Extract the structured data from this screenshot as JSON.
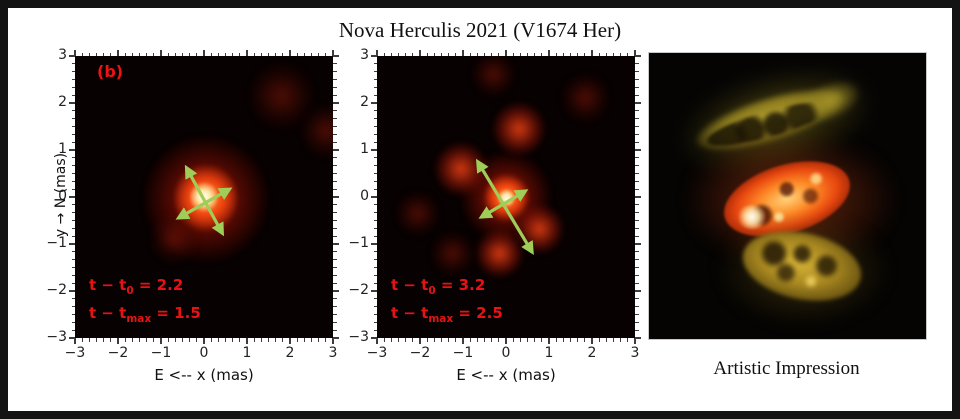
{
  "frame": {
    "title": "Nova Herculis 2021 (V1674 Her)"
  },
  "artistic": {
    "caption": "Artistic Impression"
  },
  "chart_data": {
    "type": "heatmap",
    "title": "Nova Herculis 2021 (V1674 Her)",
    "legend_position": "none",
    "grid": false,
    "colors": {
      "annotation_red": "#e71212",
      "arrow_green": "#9fce58",
      "tick": "#3c3c3c",
      "background": "#070101"
    },
    "panels": [
      {
        "id": "panel-b",
        "label": "(b)",
        "xlabel": "E <-- x (mas)",
        "ylabel": "y → N (mas)",
        "xlim": [
          -3,
          3
        ],
        "ylim": [
          -3,
          3
        ],
        "xticks": [
          -3,
          -2,
          -1,
          0,
          1,
          2,
          3
        ],
        "yticks": [
          -3,
          -2,
          -1,
          0,
          1,
          2,
          3
        ],
        "annotation": {
          "line1": {
            "pre": "t − t",
            "sub": "0",
            "post": " = 2.2"
          },
          "line2": {
            "pre": "t − t",
            "sub": "max",
            "post": " = 1.5"
          }
        },
        "blobs": [
          {
            "cx": 0.05,
            "cy": -0.05,
            "r": 1.45,
            "level": "glow"
          },
          {
            "cx": 0.05,
            "cy": -0.02,
            "r": 0.72,
            "level": "mid"
          },
          {
            "cx": 0.0,
            "cy": 0.0,
            "r": 0.32,
            "level": "core"
          },
          {
            "cx": 1.8,
            "cy": 2.15,
            "r": 0.75,
            "level": "faint"
          },
          {
            "cx": 2.85,
            "cy": 1.4,
            "r": 0.6,
            "level": "faint"
          },
          {
            "cx": -0.7,
            "cy": -0.9,
            "r": 0.55,
            "level": "faint"
          }
        ],
        "arrows": [
          {
            "x1": -0.4,
            "y1": 0.61,
            "x2": 0.42,
            "y2": -0.76
          },
          {
            "x1": -0.58,
            "y1": -0.44,
            "x2": 0.58,
            "y2": 0.16
          }
        ]
      },
      {
        "id": "panel-2",
        "label": "",
        "xlabel": "E <-- x (mas)",
        "ylabel": "",
        "xlim": [
          -3,
          3
        ],
        "ylim": [
          -3,
          3
        ],
        "xticks": [
          -3,
          -2,
          -1,
          0,
          1,
          2,
          3
        ],
        "yticks": [
          -3,
          -2,
          -1,
          0,
          1,
          2,
          3
        ],
        "annotation": {
          "line1": {
            "pre": "t − t",
            "sub": "0",
            "post": " = 3.2"
          },
          "line2": {
            "pre": "t − t",
            "sub": "max",
            "post": " = 2.5"
          }
        },
        "blobs": [
          {
            "cx": 0.0,
            "cy": 0.0,
            "r": 1.05,
            "level": "glow"
          },
          {
            "cx": 0.0,
            "cy": 0.0,
            "r": 0.5,
            "level": "mid"
          },
          {
            "cx": 0.02,
            "cy": -0.02,
            "r": 0.2,
            "level": "core"
          },
          {
            "cx": -1.05,
            "cy": 0.6,
            "r": 0.6,
            "level": "satellite"
          },
          {
            "cx": 0.3,
            "cy": 1.45,
            "r": 0.6,
            "level": "satellite"
          },
          {
            "cx": 0.78,
            "cy": -0.68,
            "r": 0.55,
            "level": "satellite"
          },
          {
            "cx": -0.15,
            "cy": -1.2,
            "r": 0.55,
            "level": "satellite"
          },
          {
            "cx": -1.25,
            "cy": -1.2,
            "r": 0.5,
            "level": "faint"
          },
          {
            "cx": 1.85,
            "cy": 2.1,
            "r": 0.55,
            "level": "faint"
          },
          {
            "cx": -2.05,
            "cy": -0.35,
            "r": 0.5,
            "level": "faint"
          },
          {
            "cx": -0.3,
            "cy": 2.6,
            "r": 0.5,
            "level": "faint"
          }
        ],
        "arrows": [
          {
            "x1": -0.65,
            "y1": 0.74,
            "x2": 0.6,
            "y2": -1.16
          },
          {
            "x1": -0.56,
            "y1": -0.42,
            "x2": 0.44,
            "y2": 0.12
          }
        ]
      }
    ]
  }
}
